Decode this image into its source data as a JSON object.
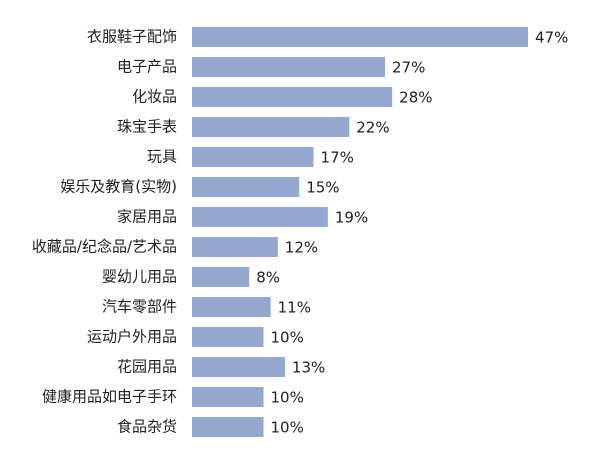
{
  "chart_data": {
    "type": "bar",
    "orientation": "horizontal",
    "categories": [
      "衣服鞋子配饰",
      "电子产品",
      "化妆品",
      "珠宝手表",
      "玩具",
      "娱乐及教育(实物)",
      "家居用品",
      "收藏品/纪念品/艺术品",
      "婴幼儿用品",
      "汽车零部件",
      "运动户外用品",
      "花园用品",
      "健康用品如电子手环",
      "食品杂货"
    ],
    "values": [
      47,
      27,
      28,
      22,
      17,
      15,
      19,
      12,
      8,
      11,
      10,
      13,
      10,
      10
    ],
    "value_labels": [
      "47%",
      "27%",
      "28%",
      "22%",
      "17%",
      "15%",
      "19%",
      "12%",
      "8%",
      "11%",
      "10%",
      "13%",
      "10%",
      "10%"
    ],
    "title": "",
    "xlabel": "",
    "ylabel": "",
    "xlim": [
      0,
      47
    ],
    "grid": false,
    "legend": "none",
    "bar_color": "#94a8d0"
  }
}
